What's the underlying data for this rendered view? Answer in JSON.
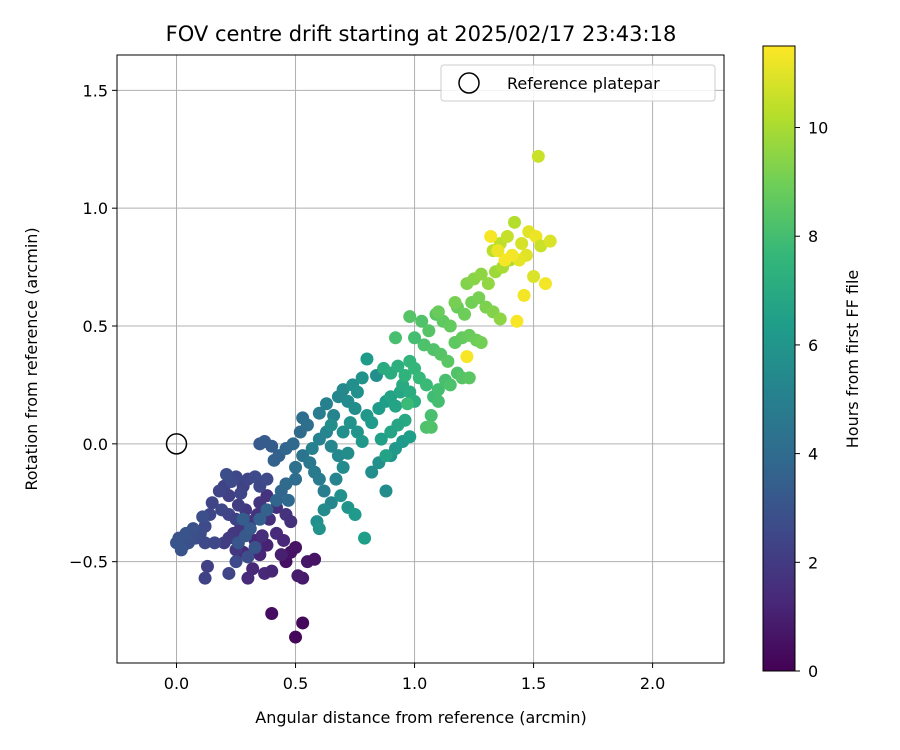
{
  "chart_data": {
    "type": "scatter",
    "title": "FOV centre drift starting at 2025/02/17 23:43:18",
    "xlabel": "Angular distance from reference (arcmin)",
    "ylabel": "Rotation from reference (arcmin)",
    "xlim": [
      -0.25,
      2.3
    ],
    "ylim": [
      -0.93,
      1.65
    ],
    "x_ticks": [
      0.0,
      0.5,
      1.0,
      1.5,
      2.0
    ],
    "x_tick_labels": [
      "0.0",
      "0.5",
      "1.0",
      "1.5",
      "2.0"
    ],
    "y_ticks": [
      -0.5,
      0.0,
      0.5,
      1.0,
      1.5
    ],
    "y_tick_labels": [
      "−0.5",
      "0.0",
      "0.5",
      "1.0",
      "1.5"
    ],
    "grid": true,
    "legend": {
      "position": "top-right",
      "entries": [
        {
          "label": "Reference platepar",
          "marker": "open-circle"
        }
      ]
    },
    "reference_point": {
      "x": 0.0,
      "y": 0.0
    },
    "colorbar": {
      "label": "Hours from first FF file",
      "min": 0,
      "max": 11.5,
      "ticks": [
        0,
        2,
        4,
        6,
        8,
        10
      ],
      "tick_labels": [
        "0",
        "2",
        "4",
        "6",
        "8",
        "10"
      ],
      "colormap": "viridis",
      "colors": [
        "#440154",
        "#482878",
        "#3e4989",
        "#31688e",
        "#26828e",
        "#1f9e89",
        "#35b779",
        "#6ece58",
        "#b5de2b",
        "#fde725"
      ]
    },
    "points": [
      [
        0.53,
        -0.76,
        0.2
      ],
      [
        0.5,
        -0.82,
        0.2
      ],
      [
        0.4,
        -0.72,
        0.4
      ],
      [
        0.46,
        -0.5,
        0.5
      ],
      [
        0.48,
        -0.46,
        0.6
      ],
      [
        0.5,
        -0.44,
        0.6
      ],
      [
        0.55,
        -0.5,
        0.7
      ],
      [
        0.58,
        -0.49,
        0.6
      ],
      [
        0.53,
        -0.57,
        0.8
      ],
      [
        0.51,
        -0.56,
        0.9
      ],
      [
        0.44,
        -0.47,
        1.0
      ],
      [
        0.38,
        -0.43,
        1.1
      ],
      [
        0.35,
        -0.47,
        1.2
      ],
      [
        0.32,
        -0.53,
        1.3
      ],
      [
        0.3,
        -0.57,
        1.4
      ],
      [
        0.37,
        -0.55,
        1.3
      ],
      [
        0.4,
        -0.54,
        1.2
      ],
      [
        0.28,
        -0.46,
        1.4
      ],
      [
        0.33,
        -0.41,
        1.3
      ],
      [
        0.36,
        -0.39,
        1.5
      ],
      [
        0.42,
        -0.38,
        1.4
      ],
      [
        0.45,
        -0.41,
        1.3
      ],
      [
        0.39,
        -0.32,
        1.6
      ],
      [
        0.34,
        -0.3,
        1.7
      ],
      [
        0.31,
        -0.33,
        1.8
      ],
      [
        0.27,
        -0.35,
        1.8
      ],
      [
        0.24,
        -0.38,
        1.9
      ],
      [
        0.22,
        -0.4,
        2.0
      ],
      [
        0.2,
        -0.42,
        2.1
      ],
      [
        0.25,
        -0.45,
        1.9
      ],
      [
        0.29,
        -0.28,
        1.9
      ],
      [
        0.35,
        -0.25,
        1.8
      ],
      [
        0.38,
        -0.22,
        1.7
      ],
      [
        0.42,
        -0.27,
        1.6
      ],
      [
        0.46,
        -0.3,
        1.7
      ],
      [
        0.48,
        -0.33,
        1.6
      ],
      [
        0.26,
        -0.26,
        2.1
      ],
      [
        0.22,
        -0.22,
        2.2
      ],
      [
        0.2,
        -0.18,
        2.3
      ],
      [
        0.18,
        -0.2,
        2.4
      ],
      [
        0.15,
        -0.25,
        2.4
      ],
      [
        0.14,
        -0.3,
        2.5
      ],
      [
        0.12,
        -0.35,
        2.6
      ],
      [
        0.1,
        -0.38,
        2.7
      ],
      [
        0.08,
        -0.4,
        2.8
      ],
      [
        0.05,
        -0.42,
        2.9
      ],
      [
        0.03,
        -0.43,
        2.9
      ],
      [
        0.01,
        -0.4,
        2.9
      ],
      [
        0.0,
        -0.42,
        3.0
      ],
      [
        0.04,
        -0.38,
        3.0
      ],
      [
        0.07,
        -0.36,
        2.9
      ],
      [
        0.12,
        -0.42,
        2.6
      ],
      [
        0.16,
        -0.42,
        2.5
      ],
      [
        0.02,
        -0.45,
        3.0
      ],
      [
        0.11,
        -0.31,
        2.8
      ],
      [
        0.19,
        -0.28,
        2.5
      ],
      [
        0.22,
        -0.3,
        2.4
      ],
      [
        0.25,
        -0.32,
        2.3
      ],
      [
        0.28,
        -0.18,
        2.3
      ],
      [
        0.3,
        -0.15,
        2.4
      ],
      [
        0.25,
        -0.14,
        2.5
      ],
      [
        0.23,
        -0.16,
        2.6
      ],
      [
        0.27,
        -0.21,
        2.4
      ],
      [
        0.33,
        -0.14,
        2.6
      ],
      [
        0.21,
        -0.13,
        2.7
      ],
      [
        0.35,
        -0.18,
        2.5
      ],
      [
        0.38,
        -0.15,
        2.6
      ],
      [
        0.13,
        -0.52,
        2.2
      ],
      [
        0.12,
        -0.57,
        2.3
      ],
      [
        0.22,
        -0.55,
        2.4
      ],
      [
        0.25,
        -0.5,
        2.6
      ],
      [
        0.3,
        -0.48,
        2.8
      ],
      [
        0.33,
        -0.44,
        3.0
      ],
      [
        0.26,
        -0.42,
        3.1
      ],
      [
        0.29,
        -0.39,
        3.2
      ],
      [
        0.31,
        -0.36,
        3.3
      ],
      [
        0.28,
        -0.32,
        3.4
      ],
      [
        0.35,
        -0.32,
        3.5
      ],
      [
        0.38,
        -0.28,
        3.6
      ],
      [
        0.42,
        -0.24,
        3.7
      ],
      [
        0.44,
        -0.2,
        3.8
      ],
      [
        0.47,
        -0.24,
        3.9
      ],
      [
        0.46,
        -0.17,
        4.0
      ],
      [
        0.5,
        -0.15,
        4.1
      ],
      [
        0.35,
        0.0,
        3.2
      ],
      [
        0.37,
        0.01,
        3.3
      ],
      [
        0.4,
        -0.01,
        3.4
      ],
      [
        0.43,
        -0.05,
        3.5
      ],
      [
        0.41,
        -0.07,
        3.6
      ],
      [
        0.46,
        -0.02,
        3.8
      ],
      [
        0.49,
        0.0,
        3.9
      ],
      [
        0.52,
        0.05,
        4.0
      ],
      [
        0.53,
        0.11,
        4.1
      ],
      [
        0.55,
        0.08,
        4.2
      ],
      [
        0.5,
        -0.1,
        4.3
      ],
      [
        0.53,
        -0.05,
        4.4
      ],
      [
        0.56,
        -0.08,
        4.6
      ],
      [
        0.58,
        -0.12,
        4.7
      ],
      [
        0.6,
        -0.15,
        4.8
      ],
      [
        0.62,
        -0.2,
        4.9
      ],
      [
        0.57,
        -0.02,
        5.0
      ],
      [
        0.6,
        0.02,
        5.1
      ],
      [
        0.63,
        0.05,
        5.2
      ],
      [
        0.65,
        -0.01,
        5.3
      ],
      [
        0.68,
        -0.05,
        5.4
      ],
      [
        0.7,
        -0.1,
        5.5
      ],
      [
        0.72,
        -0.04,
        5.6
      ],
      [
        0.67,
        -0.15,
        5.2
      ],
      [
        0.65,
        -0.25,
        5.3
      ],
      [
        0.62,
        -0.28,
        5.5
      ],
      [
        0.59,
        -0.33,
        5.7
      ],
      [
        0.6,
        -0.36,
        5.9
      ],
      [
        0.69,
        -0.22,
        5.8
      ],
      [
        0.72,
        -0.27,
        6.0
      ],
      [
        0.75,
        -0.3,
        6.2
      ],
      [
        0.79,
        -0.4,
        6.4
      ],
      [
        0.88,
        -0.2,
        5.6
      ],
      [
        0.82,
        -0.12,
        5.7
      ],
      [
        0.85,
        -0.08,
        5.8
      ],
      [
        0.9,
        -0.05,
        6.0
      ],
      [
        0.92,
        -0.02,
        6.1
      ],
      [
        0.95,
        0.01,
        6.2
      ],
      [
        0.98,
        0.03,
        6.4
      ],
      [
        0.6,
        0.13,
        4.9
      ],
      [
        0.63,
        0.17,
        5.0
      ],
      [
        0.66,
        0.12,
        5.2
      ],
      [
        0.68,
        0.2,
        5.3
      ],
      [
        0.7,
        0.23,
        5.4
      ],
      [
        0.72,
        0.18,
        5.5
      ],
      [
        0.75,
        0.15,
        5.6
      ],
      [
        0.74,
        0.25,
        5.7
      ],
      [
        0.76,
        0.22,
        5.8
      ],
      [
        0.78,
        0.28,
        5.9
      ],
      [
        0.8,
        0.36,
        6.3
      ],
      [
        0.84,
        0.29,
        5.7
      ],
      [
        0.65,
        0.08,
        5.6
      ],
      [
        0.7,
        0.05,
        5.7
      ],
      [
        0.73,
        0.09,
        5.9
      ],
      [
        0.76,
        0.05,
        6.0
      ],
      [
        0.78,
        0.01,
        6.1
      ],
      [
        0.8,
        0.12,
        6.1
      ],
      [
        0.82,
        0.09,
        6.2
      ],
      [
        0.85,
        0.15,
        6.3
      ],
      [
        0.88,
        0.18,
        6.4
      ],
      [
        0.9,
        0.2,
        6.6
      ],
      [
        0.92,
        0.16,
        6.7
      ],
      [
        0.94,
        0.22,
        6.8
      ],
      [
        0.95,
        0.25,
        7.0
      ],
      [
        0.98,
        0.22,
        7.1
      ],
      [
        1.0,
        0.18,
        7.2
      ],
      [
        0.96,
        0.1,
        6.9
      ],
      [
        0.93,
        0.08,
        6.8
      ],
      [
        0.9,
        0.05,
        6.7
      ],
      [
        0.86,
        0.02,
        6.5
      ],
      [
        0.88,
        -0.05,
        6.6
      ],
      [
        0.87,
        0.32,
        7.0
      ],
      [
        0.9,
        0.3,
        7.1
      ],
      [
        0.93,
        0.33,
        7.2
      ],
      [
        0.96,
        0.29,
        7.4
      ],
      [
        0.98,
        0.35,
        7.5
      ],
      [
        1.0,
        0.32,
        7.6
      ],
      [
        1.02,
        0.28,
        7.7
      ],
      [
        1.05,
        0.25,
        7.8
      ],
      [
        1.08,
        0.2,
        7.9
      ],
      [
        1.1,
        0.23,
        8.0
      ],
      [
        1.13,
        0.27,
        8.1
      ],
      [
        1.15,
        0.25,
        8.2
      ],
      [
        1.18,
        0.3,
        8.3
      ],
      [
        1.2,
        0.28,
        8.4
      ],
      [
        1.23,
        0.28,
        8.5
      ],
      [
        1.1,
        0.18,
        8.0
      ],
      [
        1.07,
        0.12,
        8.1
      ],
      [
        1.05,
        0.07,
        8.2
      ],
      [
        1.04,
        0.42,
        8.2
      ],
      [
        1.08,
        0.4,
        8.3
      ],
      [
        1.11,
        0.38,
        8.4
      ],
      [
        1.14,
        0.35,
        8.5
      ],
      [
        1.17,
        0.43,
        8.6
      ],
      [
        1.2,
        0.45,
        8.7
      ],
      [
        1.23,
        0.46,
        8.8
      ],
      [
        1.26,
        0.44,
        8.9
      ],
      [
        1.0,
        0.45,
        8.0
      ],
      [
        1.03,
        0.52,
        8.3
      ],
      [
        1.06,
        0.48,
        8.4
      ],
      [
        1.09,
        0.55,
        8.5
      ],
      [
        1.12,
        0.52,
        8.6
      ],
      [
        1.15,
        0.5,
        8.7
      ],
      [
        1.18,
        0.58,
        8.8
      ],
      [
        1.21,
        0.55,
        8.9
      ],
      [
        1.24,
        0.6,
        9.0
      ],
      [
        1.27,
        0.62,
        9.1
      ],
      [
        1.3,
        0.58,
        9.2
      ],
      [
        1.33,
        0.56,
        9.3
      ],
      [
        1.36,
        0.53,
        9.5
      ],
      [
        1.22,
        0.68,
        9.3
      ],
      [
        1.25,
        0.7,
        9.4
      ],
      [
        1.28,
        0.72,
        9.5
      ],
      [
        1.31,
        0.68,
        9.6
      ],
      [
        1.34,
        0.73,
        9.8
      ],
      [
        1.37,
        0.75,
        10.0
      ],
      [
        1.4,
        0.78,
        10.1
      ],
      [
        1.33,
        0.82,
        10.3
      ],
      [
        1.36,
        0.85,
        10.4
      ],
      [
        1.39,
        0.88,
        10.5
      ],
      [
        1.42,
        0.94,
        10.2
      ],
      [
        1.45,
        0.85,
        10.8
      ],
      [
        1.48,
        0.9,
        11.0
      ],
      [
        1.51,
        0.88,
        11.2
      ],
      [
        1.53,
        0.84,
        10.6
      ],
      [
        1.47,
        0.8,
        11.0
      ],
      [
        1.44,
        0.78,
        11.1
      ],
      [
        1.41,
        0.8,
        11.3
      ],
      [
        1.38,
        0.78,
        11.4
      ],
      [
        1.35,
        0.82,
        11.2
      ],
      [
        1.32,
        0.88,
        11.4
      ],
      [
        1.5,
        0.71,
        10.9
      ],
      [
        1.46,
        0.63,
        11.3
      ],
      [
        1.43,
        0.52,
        11.4
      ],
      [
        1.55,
        0.68,
        11.3
      ],
      [
        1.57,
        0.86,
        10.9
      ],
      [
        1.52,
        1.22,
        10.6
      ],
      [
        1.22,
        0.37,
        11.4
      ],
      [
        1.28,
        0.43,
        9.0
      ],
      [
        1.1,
        0.56,
        8.8
      ],
      [
        1.17,
        0.6,
        9.1
      ],
      [
        0.98,
        0.54,
        8.4
      ],
      [
        0.92,
        0.45,
        8.1
      ],
      [
        1.07,
        0.07,
        8.3
      ],
      [
        0.97,
        0.17,
        7.8
      ]
    ]
  }
}
